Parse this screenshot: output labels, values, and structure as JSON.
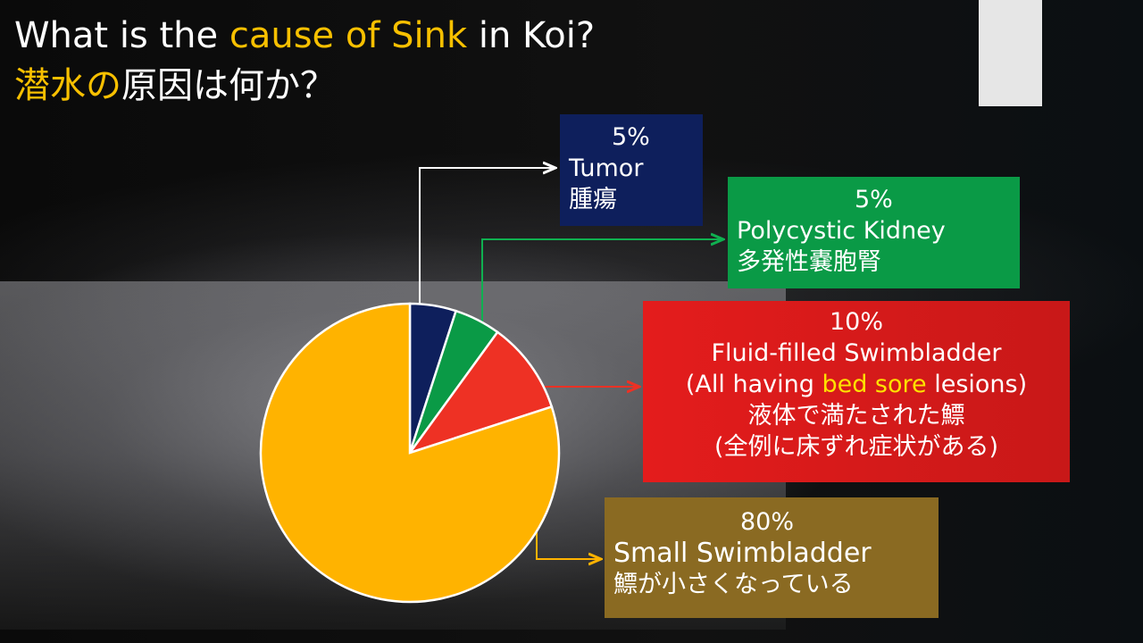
{
  "title": {
    "line1_pre": "What is the ",
    "line1_hl": "cause of Sink",
    "line1_post": " in Koi?",
    "line2_hl": "潜水の",
    "line2_post": "原因は何か？"
  },
  "chart_data": {
    "type": "pie",
    "start": "top",
    "direction": "clockwise",
    "slices": [
      {
        "value": 5,
        "label": "5%",
        "name_en": "Tumor",
        "name_ja": "腫瘍",
        "color": "#0e1f5c"
      },
      {
        "value": 5,
        "label": "5%",
        "name_en": "Polycystic Kidney",
        "name_ja": "多発性嚢胞腎",
        "color": "#0a9a46"
      },
      {
        "value": 10,
        "label": "10%",
        "name_en": "Fluid-filled Swimbladder",
        "note_pre": "(All having ",
        "note_hl": "bed sore",
        "note_post": " lesions)",
        "name_ja": "液体で満たされた鰾",
        "note_ja": "(全例に床ずれ症状がある)",
        "color": "#ee3124"
      },
      {
        "value": 80,
        "label": "80%",
        "name_en": "Small Swimbladder",
        "name_ja": "鰾が小さくなっている",
        "color": "#ffb300"
      }
    ]
  }
}
